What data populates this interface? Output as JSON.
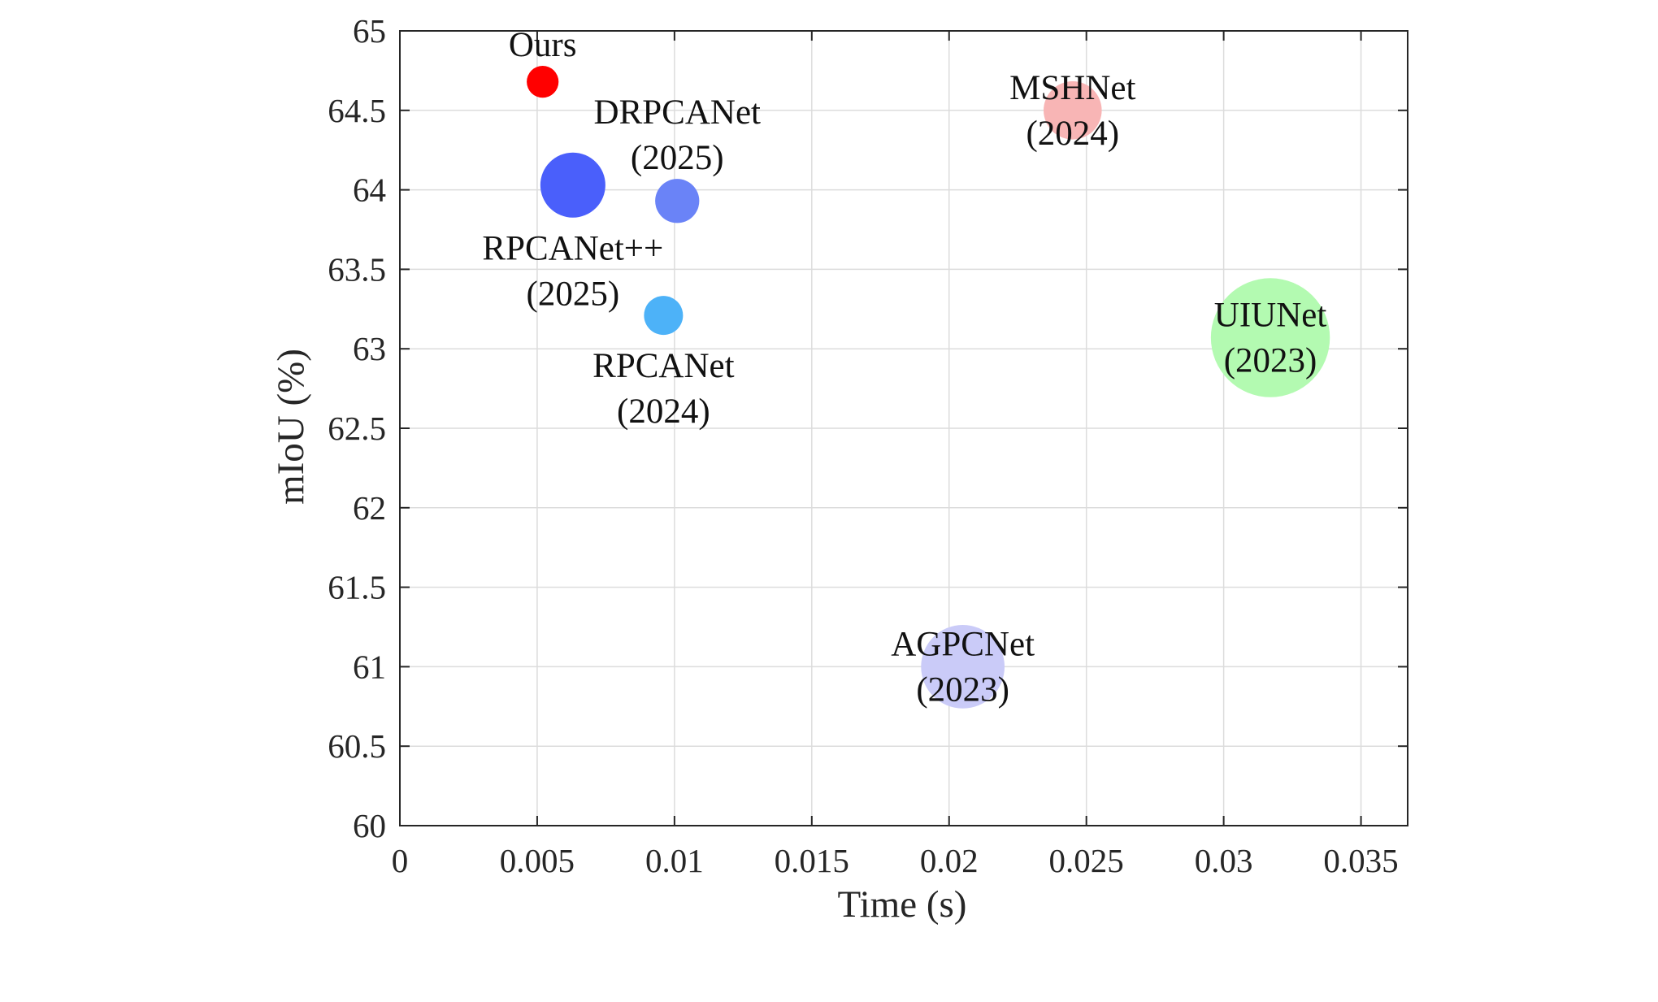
{
  "chart_data": {
    "type": "scatter",
    "xlabel": "Time (s)",
    "ylabel": "mIoU (%)",
    "xlim": [
      0,
      0.0367
    ],
    "ylim": [
      60,
      65
    ],
    "x_ticks": [
      0,
      0.005,
      0.01,
      0.015,
      0.02,
      0.025,
      0.03,
      0.035
    ],
    "x_tick_labels": [
      "0",
      "0.005",
      "0.01",
      "0.015",
      "0.02",
      "0.025",
      "0.03",
      "0.035"
    ],
    "y_ticks": [
      60,
      60.5,
      61,
      61.5,
      62,
      62.5,
      63,
      63.5,
      64,
      64.5,
      65
    ],
    "y_tick_labels": [
      "60",
      "60.5",
      "61",
      "61.5",
      "62",
      "62.5",
      "63",
      "63.5",
      "64",
      "64.5",
      "65"
    ],
    "grid": true,
    "legend": "none",
    "points": [
      {
        "name": "Ours",
        "year": "",
        "x": 0.0052,
        "y": 64.68,
        "size": 0.24,
        "color": "#ff0000",
        "label_pos": "above"
      },
      {
        "name": "RPCANet++",
        "year": "(2025)",
        "x": 0.0063,
        "y": 64.03,
        "size": 1.0,
        "color": "#4a5ffb",
        "label_pos": "below"
      },
      {
        "name": "DRPCANet",
        "year": "(2025)",
        "x": 0.0101,
        "y": 63.93,
        "size": 0.46,
        "color": "#6a83f7",
        "label_pos": "above"
      },
      {
        "name": "RPCANet",
        "year": "(2024)",
        "x": 0.0096,
        "y": 63.21,
        "size": 0.36,
        "color": "#4db2f8",
        "label_pos": "below"
      },
      {
        "name": "MSHNet",
        "year": "(2024)",
        "x": 0.0245,
        "y": 64.5,
        "size": 0.8,
        "color": "#f8b5b5",
        "label_pos": "center"
      },
      {
        "name": "UIUNet",
        "year": "(2023)",
        "x": 0.0317,
        "y": 63.07,
        "size": 3.35,
        "color": "#b3fab1",
        "label_pos": "center"
      },
      {
        "name": "AGPCNet",
        "year": "(2023)",
        "x": 0.0205,
        "y": 61.0,
        "size": 1.65,
        "color": "#cacbf8",
        "label_pos": "center"
      }
    ]
  }
}
